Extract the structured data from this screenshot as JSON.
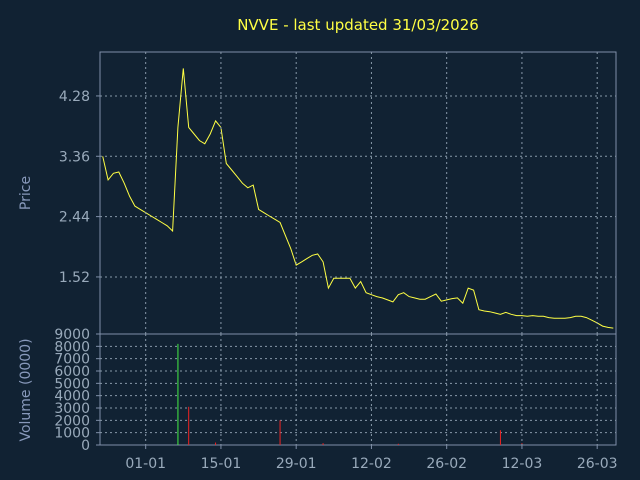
{
  "chart_data": {
    "title": "NVVE - last updated 31/03/2026",
    "price_panel": {
      "type": "line",
      "ylabel": "Price",
      "yticks": [
        "1.52",
        "2.44",
        "3.36",
        "4.28"
      ],
      "ylim": [
        0.65,
        4.95
      ],
      "line_color": "#ffff44",
      "grid": true,
      "series": [
        {
          "values": [
            3.36,
            3.0,
            3.1,
            3.12,
            2.95,
            2.75,
            2.6,
            2.55,
            2.5,
            2.45,
            2.4,
            2.35,
            2.3,
            2.22,
            3.8,
            4.7,
            3.8,
            3.7,
            3.6,
            3.55,
            3.7,
            3.9,
            3.8,
            3.25,
            3.15,
            3.05,
            2.95,
            2.88,
            2.92,
            2.55,
            2.5,
            2.45,
            2.4,
            2.35,
            2.15,
            1.95,
            1.7,
            1.75,
            1.8,
            1.85,
            1.87,
            1.75,
            1.35,
            1.5,
            1.5,
            1.5,
            1.5,
            1.35,
            1.45,
            1.28,
            1.25,
            1.22,
            1.2,
            1.17,
            1.14,
            1.25,
            1.28,
            1.22,
            1.2,
            1.18,
            1.18,
            1.22,
            1.26,
            1.15,
            1.17,
            1.19,
            1.2,
            1.12,
            1.35,
            1.32,
            1.02,
            1.0,
            0.99,
            0.97,
            0.95,
            0.98,
            0.95,
            0.93,
            0.93,
            0.92,
            0.93,
            0.92,
            0.92,
            0.9,
            0.89,
            0.89,
            0.89,
            0.9,
            0.92,
            0.92,
            0.9,
            0.86,
            0.82,
            0.77,
            0.75,
            0.74
          ]
        }
      ]
    },
    "volume_panel": {
      "type": "bar",
      "ylabel": "Volume (0000)",
      "yticks": [
        "0",
        "1000",
        "2000",
        "3000",
        "4000",
        "5000",
        "6000",
        "7000",
        "8000",
        "9000"
      ],
      "ylim": [
        0,
        9000
      ],
      "up_color": "#44ee44",
      "down_color": "#ee2222",
      "grid": true,
      "bars": [
        {
          "index": 14,
          "value": 8200,
          "direction": "up"
        },
        {
          "index": 16,
          "value": 3100,
          "direction": "down"
        },
        {
          "index": 21,
          "value": 200,
          "direction": "down"
        },
        {
          "index": 33,
          "value": 2000,
          "direction": "down"
        },
        {
          "index": 41,
          "value": 150,
          "direction": "down"
        },
        {
          "index": 55,
          "value": 100,
          "direction": "down"
        },
        {
          "index": 74,
          "value": 1200,
          "direction": "down"
        },
        {
          "index": 78,
          "value": 150,
          "direction": "down"
        }
      ]
    },
    "xticks": [
      {
        "label": "01-01",
        "index": 8.5
      },
      {
        "label": "15-01",
        "index": 22.5
      },
      {
        "label": "29-01",
        "index": 36.5
      },
      {
        "label": "12-02",
        "index": 50.5
      },
      {
        "label": "26-02",
        "index": 64.5
      },
      {
        "label": "12-03",
        "index": 78.5
      },
      {
        "label": "26-03",
        "index": 92.5
      }
    ],
    "n_points": 96
  }
}
